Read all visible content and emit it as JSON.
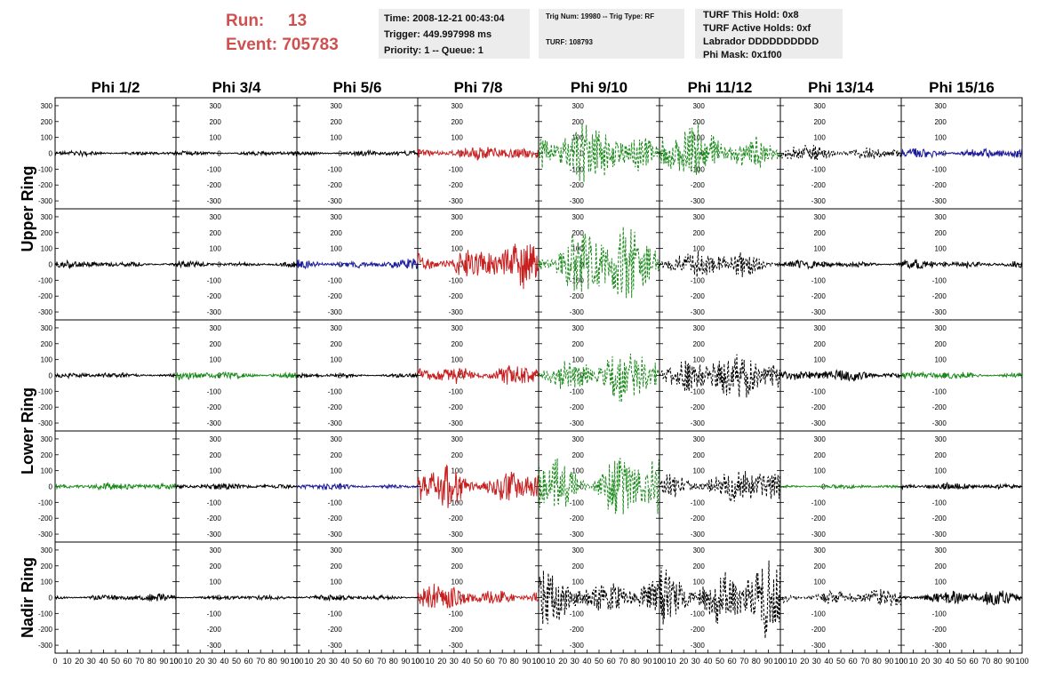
{
  "header": {
    "run_label": "Run:",
    "run_value": "13",
    "event_label": "Event:",
    "event_value": "705783"
  },
  "info_time": {
    "time": "Time: 2008-12-21 00:43:04",
    "trigger": "Trigger: 449.997998 ms",
    "priority": "Priority: 1 -- Queue: 1"
  },
  "info_trig": {
    "trig_line": "Trig Num: 19980 -- Trig Type: RF",
    "turf_line": "TURF: 108793"
  },
  "info_turf": {
    "hold": "TURF This Hold: 0x8",
    "active": "TURF Active Holds: 0xf",
    "labrador": "Labrador DDDDDDDDDD",
    "mask": "Phi Mask: 0x1f00"
  },
  "chart_data": {
    "type": "line",
    "columns": [
      "Phi 1/2",
      "Phi 3/4",
      "Phi 5/6",
      "Phi 7/8",
      "Phi 9/10",
      "Phi 11/12",
      "Phi 13/14",
      "Phi 15/16"
    ],
    "rows": [
      "Upper Ring",
      "Upper Ring",
      "Lower Ring",
      "Lower Ring",
      "Nadir Ring"
    ],
    "row_labels": [
      "Upper Ring",
      "Lower Ring",
      "Nadir Ring"
    ],
    "ylim": [
      -350,
      350
    ],
    "xlim": [
      0,
      100
    ],
    "yticks": [
      300,
      200,
      100,
      0,
      -100,
      -200,
      -300
    ],
    "xticks": [
      0,
      10,
      20,
      30,
      40,
      50,
      60,
      70,
      80,
      90,
      100
    ],
    "xtick_labels": [
      "0",
      "10",
      "20",
      "30",
      "40",
      "50",
      "60",
      "70",
      "80",
      "90",
      "100"
    ],
    "ytick_labels": [
      "300",
      "200",
      "100",
      "0",
      "-100",
      "-200",
      "-300"
    ],
    "colors": {
      "black": "#000000",
      "red": "#c82020",
      "green": "#1a8a1a",
      "blue": "#1a1a9a"
    },
    "cells": [
      [
        {
          "color": "black",
          "amp": 22,
          "dashed": false
        },
        {
          "color": "black",
          "amp": 22,
          "dashed": false
        },
        {
          "color": "black",
          "amp": 22,
          "dashed": false
        },
        {
          "color": "red",
          "amp": 55,
          "dashed": false
        },
        {
          "color": "green",
          "amp": 230,
          "dashed": true
        },
        {
          "color": "green",
          "amp": 230,
          "dashed": true
        },
        {
          "color": "black",
          "amp": 80,
          "dashed": true
        },
        {
          "color": "blue",
          "amp": 50,
          "dashed": false
        }
      ],
      [
        {
          "color": "black",
          "amp": 28,
          "dashed": false
        },
        {
          "color": "black",
          "amp": 28,
          "dashed": false
        },
        {
          "color": "blue",
          "amp": 45,
          "dashed": false
        },
        {
          "color": "red",
          "amp": 170,
          "dashed": false
        },
        {
          "color": "green",
          "amp": 300,
          "dashed": true
        },
        {
          "color": "black",
          "amp": 110,
          "dashed": true
        },
        {
          "color": "black",
          "amp": 30,
          "dashed": false
        },
        {
          "color": "black",
          "amp": 40,
          "dashed": false
        }
      ],
      [
        {
          "color": "black",
          "amp": 22,
          "dashed": false
        },
        {
          "color": "green",
          "amp": 35,
          "dashed": false
        },
        {
          "color": "black",
          "amp": 22,
          "dashed": false
        },
        {
          "color": "red",
          "amp": 100,
          "dashed": false
        },
        {
          "color": "green",
          "amp": 210,
          "dashed": true
        },
        {
          "color": "black",
          "amp": 190,
          "dashed": true
        },
        {
          "color": "black",
          "amp": 45,
          "dashed": false
        },
        {
          "color": "green",
          "amp": 30,
          "dashed": false
        }
      ],
      [
        {
          "color": "green",
          "amp": 30,
          "dashed": false
        },
        {
          "color": "black",
          "amp": 25,
          "dashed": false
        },
        {
          "color": "blue",
          "amp": 25,
          "dashed": false
        },
        {
          "color": "red",
          "amp": 180,
          "dashed": false
        },
        {
          "color": "green",
          "amp": 290,
          "dashed": true
        },
        {
          "color": "black",
          "amp": 150,
          "dashed": true
        },
        {
          "color": "green",
          "amp": 15,
          "dashed": false
        },
        {
          "color": "black",
          "amp": 25,
          "dashed": false
        }
      ],
      [
        {
          "color": "black",
          "amp": 30,
          "dashed": false
        },
        {
          "color": "black",
          "amp": 18,
          "dashed": false
        },
        {
          "color": "black",
          "amp": 22,
          "dashed": false
        },
        {
          "color": "red",
          "amp": 100,
          "dashed": false
        },
        {
          "color": "black",
          "amp": 220,
          "dashed": true
        },
        {
          "color": "black",
          "amp": 320,
          "dashed": true
        },
        {
          "color": "black",
          "amp": 70,
          "dashed": true
        },
        {
          "color": "black",
          "amp": 60,
          "dashed": false
        }
      ]
    ]
  }
}
